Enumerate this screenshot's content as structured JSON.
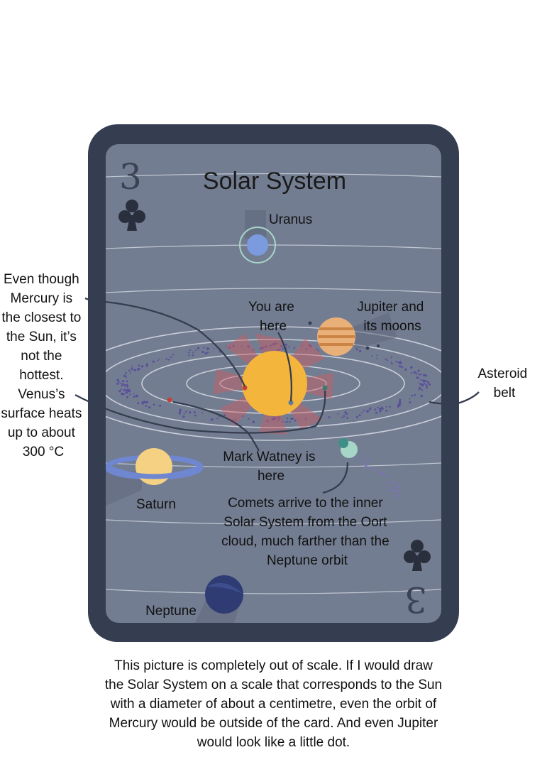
{
  "card": {
    "title": "Solar System",
    "rank": "3",
    "suit_icon": "club-icon"
  },
  "labels": {
    "uranus": "Uranus",
    "you_are_here": [
      "You are",
      "here"
    ],
    "jupiter": [
      "Jupiter and",
      "its moons"
    ],
    "asteroid_belt": [
      "Asteroid",
      "belt"
    ],
    "mark_watney": [
      "Mark Watney is",
      "here"
    ],
    "saturn": "Saturn",
    "comets": [
      "Comets arrive to the inner",
      "Solar System from the Oort",
      "cloud, much farther than the",
      "Neptune orbit"
    ],
    "neptune": "Neptune",
    "mercury_note": [
      "Even though",
      "Mercury is",
      "the closest to",
      "the Sun, it’s",
      "not the",
      "hottest.",
      "Venus’s",
      "surface heats",
      "up to about",
      "300 °C"
    ]
  },
  "caption": [
    "This picture is completely out of scale. If I would draw",
    "the Solar System on a scale that corresponds to the Sun",
    "with a diameter of about a centimetre, even the orbit of",
    "Mercury would be outside of the card. And even Jupiter",
    "would look like a little dot."
  ],
  "colors": {
    "card_frame": "#353d50",
    "card_face": "#737d91",
    "orbit_line": "#d8dde6",
    "sun": "#f4b53c",
    "sun_rays": "#cf5d63",
    "uranus": "#7c9bdf",
    "jupiter": "#e6a160",
    "saturn": "#f4d183",
    "saturn_ring": "#6f86d0",
    "neptune": "#2f3c74",
    "comet": "#a6d6c8",
    "asteroid": "#5a4f9a",
    "leader_line": "#353d50"
  }
}
